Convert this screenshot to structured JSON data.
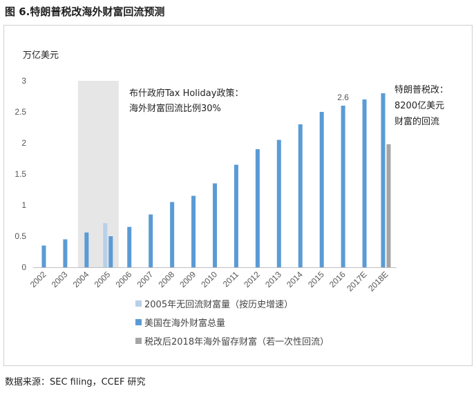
{
  "figure_title": "图 6.特朗普税改海外财富回流预测",
  "source_note": "数据来源：SEC filing，CCEF 研究",
  "chart_data": {
    "type": "bar",
    "ylabel": "万亿美元",
    "ylim": [
      0,
      3
    ],
    "yticks": [
      0,
      0.5,
      1,
      1.5,
      2,
      2.5,
      3
    ],
    "grid": false,
    "categories": [
      "2002",
      "2003",
      "2004",
      "2005",
      "2006",
      "2007",
      "2008",
      "2009",
      "2010",
      "2011",
      "2012",
      "2013",
      "2014",
      "2015",
      "2016",
      "2017E",
      "2018E"
    ],
    "series": [
      {
        "name": "2005年无回流财富量（按历史增速）",
        "color": "#b8d0e8",
        "values": [
          null,
          null,
          null,
          0.71,
          null,
          null,
          null,
          null,
          null,
          null,
          null,
          null,
          null,
          null,
          null,
          null,
          null
        ]
      },
      {
        "name": "美国在海外财富总量",
        "color": "#5b9bd5",
        "values": [
          0.35,
          0.45,
          0.56,
          0.5,
          0.65,
          0.85,
          1.05,
          1.15,
          1.35,
          1.65,
          1.9,
          2.05,
          2.3,
          2.5,
          2.6,
          2.7,
          2.8
        ]
      },
      {
        "name": "税改后2018年海外留存财富（若一次性回流）",
        "color": "#a5a5a5",
        "values": [
          null,
          null,
          null,
          null,
          null,
          null,
          null,
          null,
          null,
          null,
          null,
          null,
          null,
          null,
          null,
          null,
          1.98
        ]
      }
    ],
    "shaded_region": {
      "from": "2004",
      "to": "2005",
      "color": "#e6e6e6"
    },
    "annotations": [
      {
        "text_lines": [
          "布什政府Tax Holiday政策：",
          "海外财富回流比例30%"
        ]
      },
      {
        "text_lines": [
          "特朗普税改：",
          "8200亿美元",
          "财富的回流"
        ]
      }
    ],
    "data_labels": [
      {
        "category": "2016",
        "text": "2.6"
      }
    ],
    "legend_position": "bottom"
  }
}
